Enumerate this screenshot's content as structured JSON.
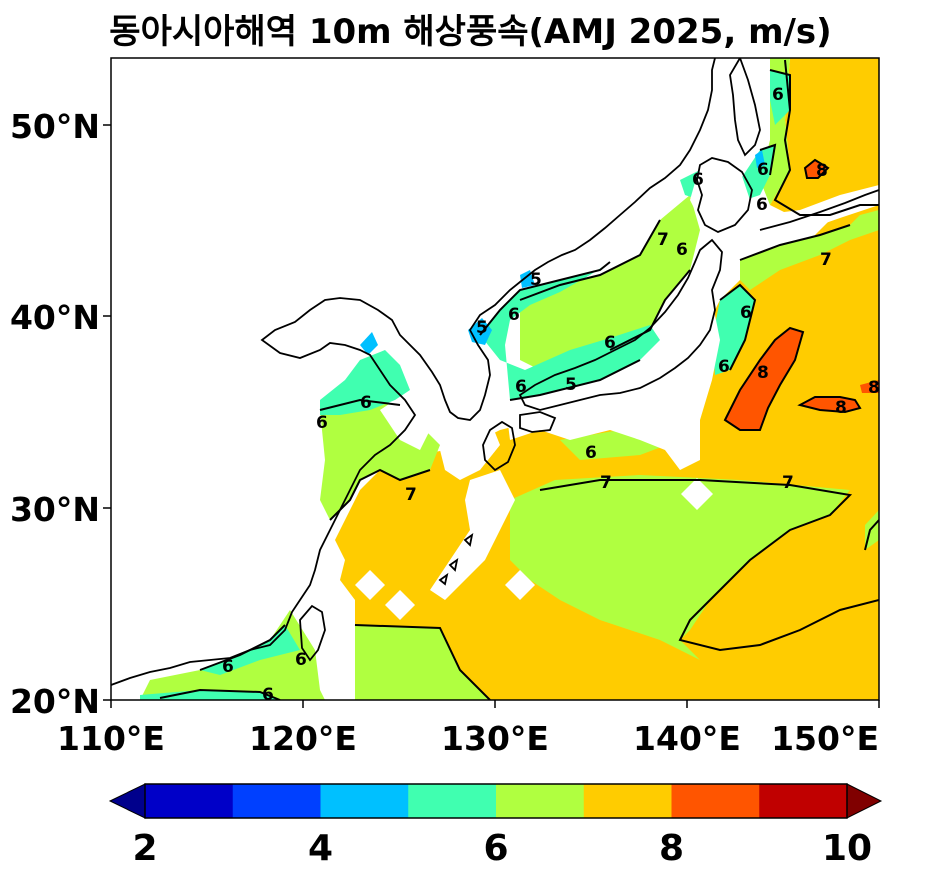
{
  "title": "동아시아해역 10m 해상풍속(AMJ 2025, m/s)",
  "map": {
    "lon_range": [
      110,
      150
    ],
    "lat_range": [
      20,
      53.5
    ],
    "x_ticks": [
      "110°E",
      "120°E",
      "130°E",
      "140°E",
      "150°E"
    ],
    "y_ticks": [
      "20°N",
      "30°N",
      "40°N",
      "50°N"
    ],
    "contour_labels": [
      "5",
      "5",
      "5",
      "6",
      "6",
      "6",
      "6",
      "6",
      "6",
      "6",
      "6",
      "6",
      "6",
      "6",
      "6",
      "6",
      "6",
      "6",
      "6",
      "7",
      "7",
      "7",
      "7",
      "7",
      "8",
      "8",
      "8",
      "8"
    ]
  },
  "colorbar": {
    "tick_labels": [
      "2",
      "4",
      "6",
      "8",
      "10"
    ],
    "colors": [
      "#00008c",
      "#0000c8",
      "#0040ff",
      "#00c0ff",
      "#40ffb0",
      "#b0ff40",
      "#ffcc00",
      "#ff5500",
      "#c00000",
      "#800000"
    ]
  }
}
